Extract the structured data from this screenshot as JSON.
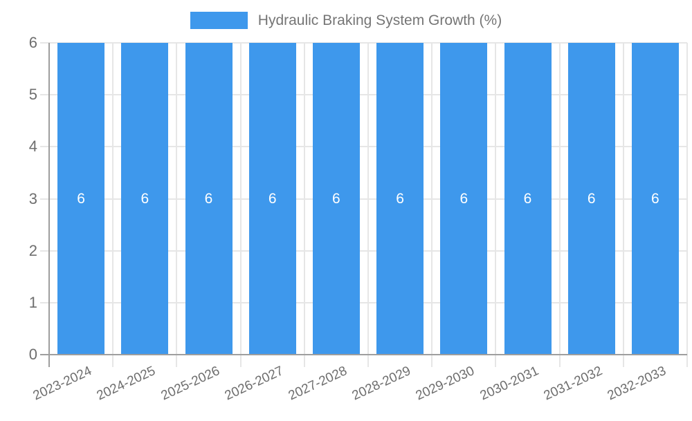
{
  "chart_data": {
    "type": "bar",
    "title": "",
    "legend": {
      "position": "top",
      "entries": [
        "Hydraulic Braking System Growth (%)"
      ]
    },
    "categories": [
      "2023-2024",
      "2024-2025",
      "2025-2026",
      "2026-2027",
      "2027-2028",
      "2028-2029",
      "2029-2030",
      "2030-2031",
      "2031-2032",
      "2032-2033"
    ],
    "series": [
      {
        "name": "Hydraulic Braking System Growth (%)",
        "values": [
          6,
          6,
          6,
          6,
          6,
          6,
          6,
          6,
          6,
          6
        ],
        "color": "#3e98ec"
      }
    ],
    "data_labels": {
      "visible": true,
      "position": "center",
      "color": "#ffffff"
    },
    "xlabel": "",
    "ylabel": "",
    "ylim": [
      0,
      6
    ],
    "yticks": [
      0,
      1,
      2,
      3,
      4,
      5,
      6
    ],
    "x_label_rotation_deg": -25,
    "grid": true
  },
  "colors": {
    "bar": "#3e98ec",
    "grid_line": "#e6e6e6",
    "axis_line": "#9e9e9e",
    "axis_text": "#6e6e6e",
    "legend_text": "#757575",
    "bar_label": "#ffffff",
    "background": "#ffffff"
  }
}
